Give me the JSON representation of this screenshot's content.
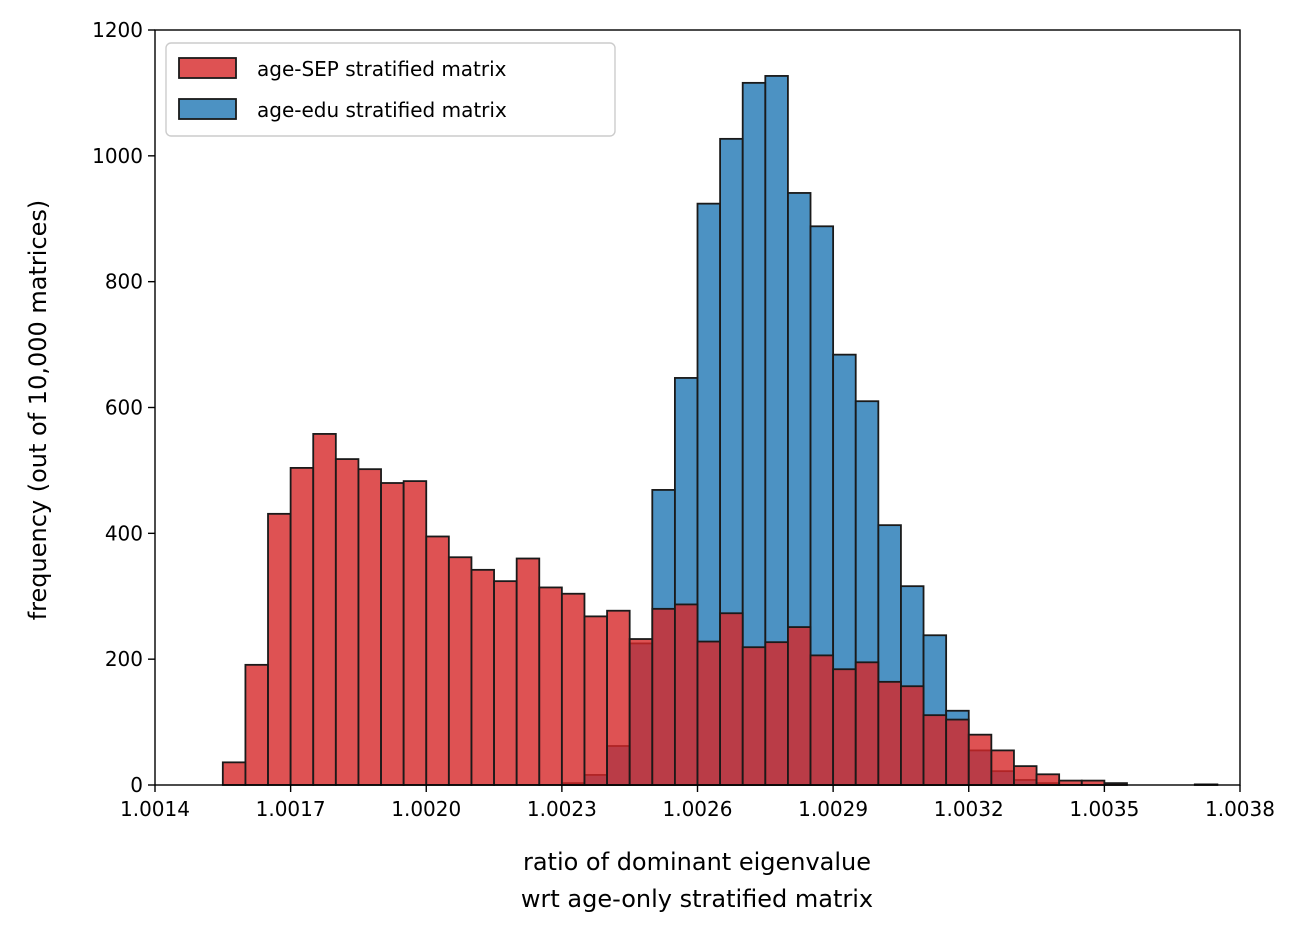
{
  "chart_data": {
    "type": "bar",
    "title": "",
    "xlabel": [
      "ratio of dominant eigenvalue",
      "wrt age-only stratified matrix"
    ],
    "ylabel": "frequency (out of 10,000 matrices)",
    "xlim": [
      1.0014,
      1.0038
    ],
    "ylim": [
      0,
      1200
    ],
    "x_ticks": [
      "1.0014",
      "1.0017",
      "1.0020",
      "1.0023",
      "1.0026",
      "1.0029",
      "1.0032",
      "1.0035",
      "1.0038"
    ],
    "y_ticks": [
      "0",
      "200",
      "400",
      "600",
      "800",
      "1000",
      "1200"
    ],
    "grid": false,
    "legend_position": "top-left",
    "series": [
      {
        "name": "age-edu stratified matrix",
        "color": "#1f77b4",
        "bin_width": 5e-05,
        "bins": [
          [
            1.0023,
            3
          ],
          [
            1.00235,
            16
          ],
          [
            1.0024,
            62
          ],
          [
            1.00245,
            225
          ],
          [
            1.0025,
            469
          ],
          [
            1.00255,
            647
          ],
          [
            1.0026,
            924
          ],
          [
            1.00265,
            1027
          ],
          [
            1.0027,
            1116
          ],
          [
            1.00275,
            1127
          ],
          [
            1.0028,
            941
          ],
          [
            1.00285,
            888
          ],
          [
            1.0029,
            684
          ],
          [
            1.00295,
            610
          ],
          [
            1.003,
            413
          ],
          [
            1.00305,
            316
          ],
          [
            1.0031,
            238
          ],
          [
            1.00315,
            118
          ],
          [
            1.0032,
            55
          ],
          [
            1.00325,
            22
          ],
          [
            1.0033,
            8
          ],
          [
            1.00335,
            3
          ]
        ]
      },
      {
        "name": "age-SEP stratified matrix",
        "color": "#d62728",
        "bin_width": 5e-05,
        "bins": [
          [
            1.00155,
            36
          ],
          [
            1.0016,
            191
          ],
          [
            1.00165,
            431
          ],
          [
            1.0017,
            504
          ],
          [
            1.00175,
            558
          ],
          [
            1.0018,
            518
          ],
          [
            1.00185,
            502
          ],
          [
            1.0019,
            480
          ],
          [
            1.00195,
            483
          ],
          [
            1.002,
            395
          ],
          [
            1.00205,
            362
          ],
          [
            1.0021,
            342
          ],
          [
            1.00215,
            324
          ],
          [
            1.0022,
            360
          ],
          [
            1.00225,
            314
          ],
          [
            1.0023,
            304
          ],
          [
            1.00235,
            268
          ],
          [
            1.0024,
            277
          ],
          [
            1.00245,
            232
          ],
          [
            1.0025,
            280
          ],
          [
            1.00255,
            287
          ],
          [
            1.0026,
            228
          ],
          [
            1.00265,
            273
          ],
          [
            1.0027,
            219
          ],
          [
            1.00275,
            227
          ],
          [
            1.0028,
            251
          ],
          [
            1.00285,
            206
          ],
          [
            1.0029,
            184
          ],
          [
            1.00295,
            195
          ],
          [
            1.003,
            164
          ],
          [
            1.00305,
            157
          ],
          [
            1.0031,
            111
          ],
          [
            1.00315,
            104
          ],
          [
            1.0032,
            80
          ],
          [
            1.00325,
            55
          ],
          [
            1.0033,
            30
          ],
          [
            1.00335,
            17
          ],
          [
            1.0034,
            7
          ],
          [
            1.00345,
            7
          ],
          [
            1.0035,
            3
          ],
          [
            1.0037,
            1
          ]
        ]
      }
    ],
    "legend": [
      "age-SEP stratified matrix",
      "age-edu stratified matrix"
    ]
  }
}
